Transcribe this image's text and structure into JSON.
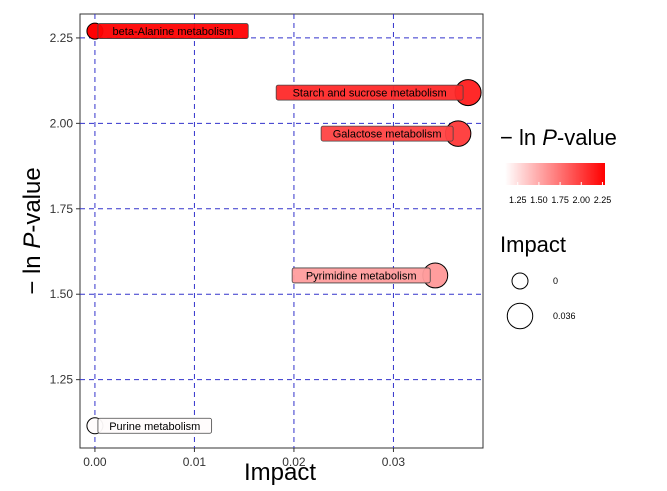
{
  "chart_data": {
    "type": "scatter",
    "xlabel": "Impact",
    "ylabel": "− ln P-value",
    "xlim": [
      -0.0015,
      0.039
    ],
    "ylim": [
      1.05,
      2.32
    ],
    "xticks": [
      "0.00",
      "0.01",
      "0.02",
      "0.03"
    ],
    "xtick_values": [
      0,
      0.01,
      0.02,
      0.03
    ],
    "yticks": [
      "1.25",
      "1.50",
      "1.75",
      "2.00",
      "2.25"
    ],
    "ytick_values": [
      1.25,
      1.5,
      1.75,
      2.0,
      2.25
    ],
    "grid": true,
    "points": [
      {
        "label": "beta-Alanine metabolism",
        "x": 0.0,
        "y": 2.27,
        "impact": 0.0,
        "color_value": 2.27
      },
      {
        "label": "Starch and sucrose metabolism",
        "x": 0.0375,
        "y": 2.09,
        "impact": 0.038,
        "color_value": 2.09
      },
      {
        "label": "Galactose metabolism",
        "x": 0.0365,
        "y": 1.97,
        "impact": 0.036,
        "color_value": 1.97
      },
      {
        "label": "Pyrimidine metabolism",
        "x": 0.0342,
        "y": 1.555,
        "impact": 0.034,
        "color_value": 1.555
      },
      {
        "label": "Purine metabolism",
        "x": 0.0,
        "y": 1.115,
        "impact": 0.0,
        "color_value": 1.115
      }
    ],
    "legend_color": {
      "title": "− ln P-value",
      "ticks": [
        "1.25",
        "1.50",
        "1.75",
        "2.00",
        "2.25"
      ],
      "tick_values": [
        1.25,
        1.5,
        1.75,
        2.0,
        2.25
      ],
      "range": [
        1.1,
        2.28
      ],
      "low_color": "#ffffff",
      "high_color": "#ff0000",
      "placement": "right"
    },
    "legend_size": {
      "title": "Impact",
      "entries": [
        {
          "label": "0",
          "value": 0
        },
        {
          "label": "0.036",
          "value": 0.036
        }
      ],
      "placement": "right"
    },
    "colors": {
      "grid": "#3333cc",
      "panel_border": "#333333",
      "point_stroke": "#000000"
    }
  }
}
